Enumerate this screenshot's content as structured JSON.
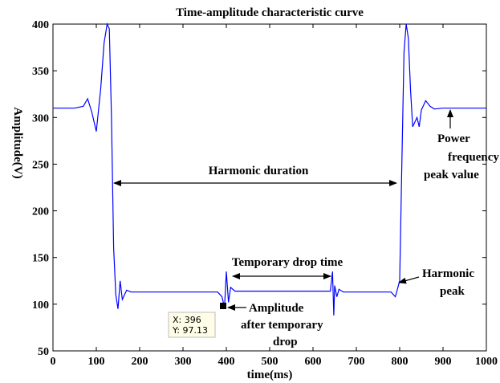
{
  "chart_data": {
    "type": "line",
    "title": "Time-amplitude characteristic curve",
    "xlabel": "time(ms)",
    "ylabel": "Amplitude(V)",
    "xlim": [
      0,
      1000
    ],
    "ylim": [
      50,
      400
    ],
    "xticks": [
      0,
      100,
      200,
      300,
      400,
      500,
      600,
      700,
      800,
      900,
      1000
    ],
    "yticks": [
      50,
      100,
      150,
      200,
      250,
      300,
      350,
      400
    ],
    "grid": false,
    "line_color": "#0000ff",
    "series": [
      {
        "x": [
          0,
          50,
          70,
          80,
          90,
          100,
          110,
          118,
          125,
          130,
          135,
          140,
          145,
          150,
          155,
          160,
          170,
          180,
          200,
          300,
          380,
          390,
          395,
          396,
          400,
          405,
          410,
          420,
          500,
          600,
          640,
          645,
          648,
          650,
          655,
          660,
          670,
          700,
          780,
          790,
          800,
          805,
          810,
          815,
          820,
          825,
          830,
          840,
          845,
          850,
          860,
          870,
          880,
          900,
          950,
          1000
        ],
        "values": [
          310,
          310,
          312,
          320,
          305,
          285,
          330,
          380,
          400,
          395,
          300,
          160,
          110,
          95,
          125,
          105,
          115,
          113,
          113,
          113,
          113,
          108,
          98,
          97.13,
          135,
          102,
          118,
          114,
          114,
          114,
          114,
          135,
          88,
          120,
          108,
          116,
          113,
          113,
          113,
          108,
          125,
          250,
          370,
          400,
          385,
          330,
          290,
          300,
          290,
          308,
          318,
          312,
          309,
          310,
          310,
          310
        ]
      }
    ],
    "annotations": [
      "Harmonic duration",
      "Temporary drop time",
      "Harmonic peak",
      "Amplitude after temporary drop",
      "Power frequency peak value"
    ],
    "datatip": {
      "x": "X: 396",
      "y": "Y: 97.13"
    }
  },
  "labels": {
    "harmonic_duration": "Harmonic duration",
    "temporary_drop_time": "Temporary drop time",
    "harmonic_peak_1": "Harmonic",
    "harmonic_peak_2": "peak",
    "amplitude_1": "Amplitude",
    "amplitude_2": "after temporary",
    "amplitude_3": "drop",
    "power_1": "Power",
    "power_2": "frequency",
    "power_3": "peak value"
  }
}
